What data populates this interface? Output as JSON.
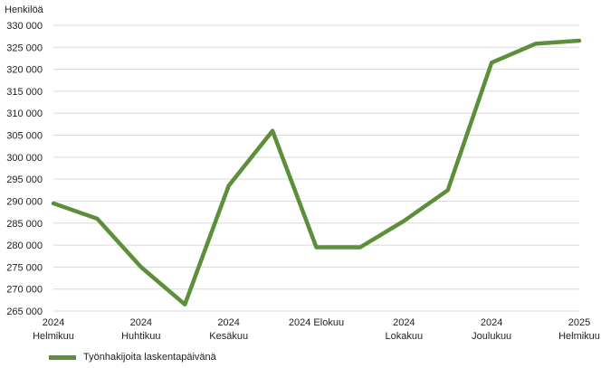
{
  "chart_data": {
    "type": "line",
    "title": "",
    "ylabel": "Henkilöä",
    "xlabel": "",
    "ylim": [
      265000,
      330000
    ],
    "yticks": [
      265000,
      270000,
      275000,
      280000,
      285000,
      290000,
      295000,
      300000,
      305000,
      310000,
      315000,
      320000,
      325000,
      330000
    ],
    "ytick_labels": [
      "265 000",
      "270 000",
      "275 000",
      "280 000",
      "285 000",
      "290 000",
      "295 000",
      "300 000",
      "305 000",
      "310 000",
      "315 000",
      "320 000",
      "325 000",
      "330 000"
    ],
    "x_tick_labels": [
      {
        "index": 0,
        "lines": [
          "2024",
          "Helmikuu"
        ]
      },
      {
        "index": 2,
        "lines": [
          "2024",
          "Huhtikuu"
        ]
      },
      {
        "index": 4,
        "lines": [
          "2024",
          "Kesäkuu"
        ]
      },
      {
        "index": 6,
        "lines": [
          "2024 Elokuu"
        ]
      },
      {
        "index": 8,
        "lines": [
          "2024",
          "Lokakuu"
        ]
      },
      {
        "index": 10,
        "lines": [
          "2024",
          "Joulukuu"
        ]
      },
      {
        "index": 12,
        "lines": [
          "2025",
          "Helmikuu"
        ]
      }
    ],
    "grid": true,
    "legend_position": "bottom-left",
    "series": [
      {
        "name": "Työnhakijoita laskentapäivänä",
        "color": "#5c8f3a",
        "values": [
          289500,
          286000,
          275000,
          266500,
          293500,
          306000,
          279500,
          279500,
          285500,
          292500,
          321500,
          325800,
          326500
        ]
      }
    ]
  }
}
